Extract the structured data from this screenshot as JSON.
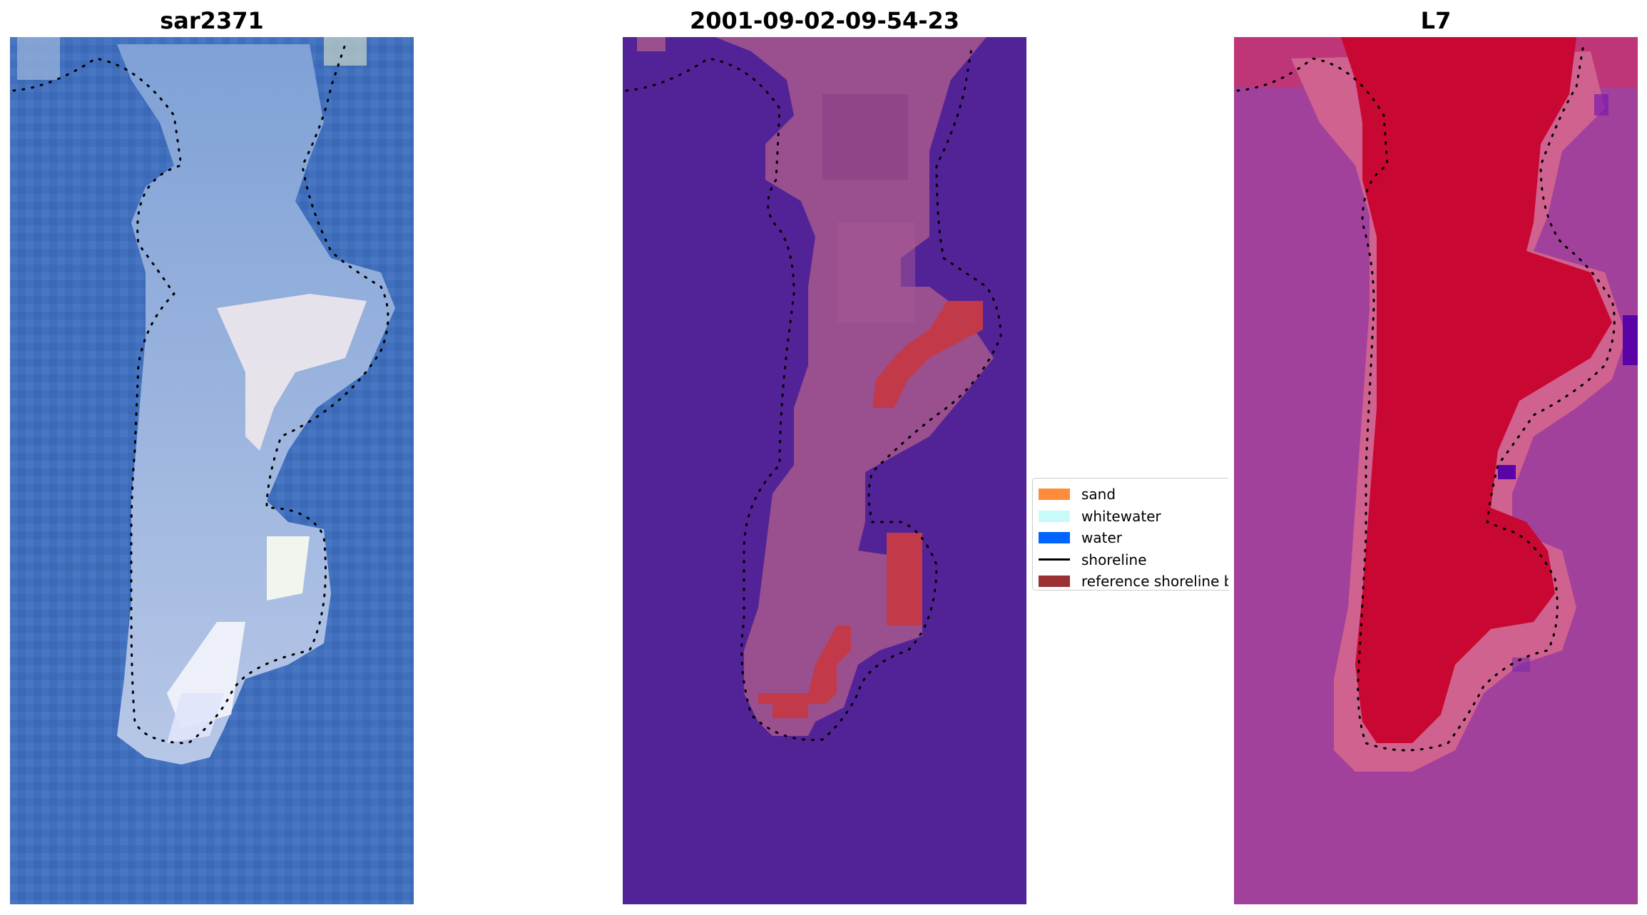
{
  "panels": [
    {
      "title": "sar2371",
      "kind": "rgb",
      "colors": {
        "background": "#3f6fbd",
        "land": "#a9bde0",
        "highlight": "#f4f1ec"
      }
    },
    {
      "title": "2001-09-02-09-54-23",
      "kind": "classified",
      "colors": {
        "background": "#522396",
        "land": "#9a4f8e",
        "reference_band": "#c23a4a"
      }
    },
    {
      "title": "L7",
      "kind": "index",
      "colors": {
        "background": "#a2419b",
        "land": "#c80832",
        "edge": "#d0628f",
        "low": "#5a04a8"
      }
    }
  ],
  "legend": {
    "items": [
      {
        "label": "sand",
        "color": "#ff8c3a",
        "type": "patch"
      },
      {
        "label": "whitewater",
        "color": "#c8fafa",
        "type": "patch"
      },
      {
        "label": "water",
        "color": "#0064ff",
        "type": "patch"
      },
      {
        "label": "shoreline",
        "color": "#000000",
        "type": "line"
      },
      {
        "label": "reference shoreline buffer",
        "color": "#9a3032",
        "type": "patch"
      }
    ]
  }
}
